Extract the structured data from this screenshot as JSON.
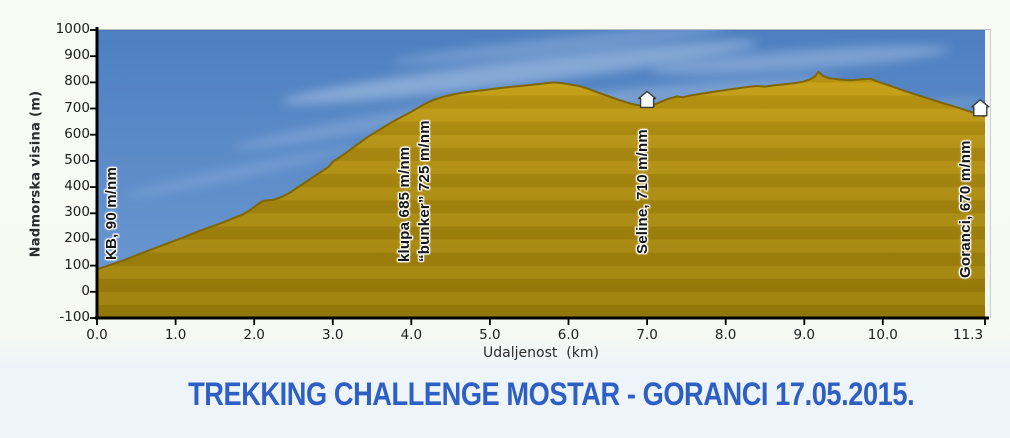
{
  "title": "TREKKING CHALLENGE MOSTAR - GORANCI 17.05.2015.",
  "chart_data": {
    "type": "area",
    "title": "",
    "xlabel": "Udaljenost  (km)",
    "ylabel": "Nadmorska visina (m)",
    "xlim": [
      0,
      11.3
    ],
    "ylim": [
      -100,
      1000
    ],
    "grid": false,
    "legend": "none",
    "x_ticks": [
      {
        "label": "0.0",
        "km": 0
      },
      {
        "label": "1.0",
        "km": 1
      },
      {
        "label": "2.0",
        "km": 2
      },
      {
        "label": "3.0",
        "km": 3
      },
      {
        "label": "4.0",
        "km": 4
      },
      {
        "label": "5.0",
        "km": 5
      },
      {
        "label": "6.0",
        "km": 6
      },
      {
        "label": "7.0",
        "km": 7
      },
      {
        "label": "8.0",
        "km": 8
      },
      {
        "label": "9.0",
        "km": 9
      },
      {
        "label": "10.0",
        "km": 10
      },
      {
        "label": "11.3",
        "km": 11.3
      }
    ],
    "y_ticks": [
      {
        "label": "1000",
        "m": 1000
      },
      {
        "label": "900",
        "m": 900
      },
      {
        "label": "800",
        "m": 800
      },
      {
        "label": "700",
        "m": 700
      },
      {
        "label": "600",
        "m": 600
      },
      {
        "label": "500",
        "m": 500
      },
      {
        "label": "400",
        "m": 400
      },
      {
        "label": "300",
        "m": 300
      },
      {
        "label": "200",
        "m": 200
      },
      {
        "label": "100",
        "m": 100
      },
      {
        "label": "0",
        "m": 0
      },
      {
        "label": "-100",
        "m": -100
      }
    ],
    "series": [
      {
        "name": "elevation-profile",
        "points": [
          [
            0,
            86
          ],
          [
            0.1,
            96
          ],
          [
            0.2,
            106
          ],
          [
            0.35,
            122
          ],
          [
            0.5,
            140
          ],
          [
            0.65,
            157
          ],
          [
            0.8,
            174
          ],
          [
            0.95,
            191
          ],
          [
            1.1,
            208
          ],
          [
            1.25,
            226
          ],
          [
            1.4,
            243
          ],
          [
            1.55,
            259
          ],
          [
            1.7,
            277
          ],
          [
            1.85,
            295
          ],
          [
            1.95,
            312
          ],
          [
            2.05,
            335
          ],
          [
            2.12,
            348
          ],
          [
            2.25,
            352
          ],
          [
            2.35,
            362
          ],
          [
            2.45,
            378
          ],
          [
            2.55,
            398
          ],
          [
            2.65,
            418
          ],
          [
            2.75,
            438
          ],
          [
            2.85,
            458
          ],
          [
            2.95,
            478
          ],
          [
            3.0,
            497
          ],
          [
            3.1,
            516
          ],
          [
            3.2,
            538
          ],
          [
            3.3,
            560
          ],
          [
            3.45,
            592
          ],
          [
            3.6,
            620
          ],
          [
            3.75,
            648
          ],
          [
            3.9,
            672
          ],
          [
            4.0,
            688
          ],
          [
            4.1,
            705
          ],
          [
            4.2,
            722
          ],
          [
            4.3,
            735
          ],
          [
            4.42,
            746
          ],
          [
            4.55,
            755
          ],
          [
            4.7,
            762
          ],
          [
            4.85,
            768
          ],
          [
            5.0,
            773
          ],
          [
            5.15,
            779
          ],
          [
            5.3,
            784
          ],
          [
            5.45,
            788
          ],
          [
            5.6,
            793
          ],
          [
            5.72,
            797
          ],
          [
            5.82,
            800
          ],
          [
            5.92,
            797
          ],
          [
            6.02,
            792
          ],
          [
            6.12,
            787
          ],
          [
            6.22,
            779
          ],
          [
            6.35,
            764
          ],
          [
            6.5,
            748
          ],
          [
            6.65,
            732
          ],
          [
            6.8,
            718
          ],
          [
            6.92,
            711
          ],
          [
            7.0,
            708
          ],
          [
            7.08,
            714
          ],
          [
            7.18,
            726
          ],
          [
            7.28,
            738
          ],
          [
            7.38,
            746
          ],
          [
            7.45,
            743
          ],
          [
            7.55,
            750
          ],
          [
            7.7,
            757
          ],
          [
            7.85,
            764
          ],
          [
            8.0,
            771
          ],
          [
            8.15,
            777
          ],
          [
            8.3,
            783
          ],
          [
            8.4,
            786
          ],
          [
            8.5,
            784
          ],
          [
            8.62,
            789
          ],
          [
            8.75,
            793
          ],
          [
            8.88,
            797
          ],
          [
            8.98,
            802
          ],
          [
            9.08,
            812
          ],
          [
            9.14,
            824
          ],
          [
            9.18,
            840
          ],
          [
            9.24,
            824
          ],
          [
            9.32,
            816
          ],
          [
            9.45,
            811
          ],
          [
            9.6,
            808
          ],
          [
            9.75,
            812
          ],
          [
            9.84,
            814
          ],
          [
            9.95,
            801
          ],
          [
            10.1,
            786
          ],
          [
            10.25,
            770
          ],
          [
            10.4,
            755
          ],
          [
            10.55,
            741
          ],
          [
            10.7,
            727
          ],
          [
            10.85,
            713
          ],
          [
            11.0,
            699
          ],
          [
            11.1,
            689
          ],
          [
            11.2,
            679
          ],
          [
            11.3,
            670
          ]
        ]
      }
    ],
    "annotations": [
      {
        "name": "start-kb",
        "text_km": 0.19,
        "lines": [
          "KB, 90 m/nm"
        ]
      },
      {
        "name": "klupa-bunker",
        "text_km": 4.05,
        "lines": [
          "klupa 685 m/nm",
          "“bunker” 725 m/nm"
        ]
      },
      {
        "name": "seline",
        "text_km": 6.95,
        "lines": [
          "Seline, 710 m/nm"
        ],
        "marker": {
          "km": 7.0,
          "m": 708
        }
      },
      {
        "name": "goranci",
        "text_km": 11.06,
        "lines": [
          "Goranci, 670 m/nm"
        ],
        "marker": {
          "km": 11.24,
          "m": 676
        }
      }
    ],
    "colors": {
      "sky_top": "#4d7fc0",
      "sky_bottom": "#6e9ad2",
      "terrain_top": "#c7a013",
      "terrain_mid": "#b29012",
      "terrain_bottom": "#9c7e09",
      "terrain_outline": "#7e6606",
      "axis": "#000000",
      "title_blue": "#2e5fc4",
      "marker_fill": "#fdfdfd"
    }
  }
}
